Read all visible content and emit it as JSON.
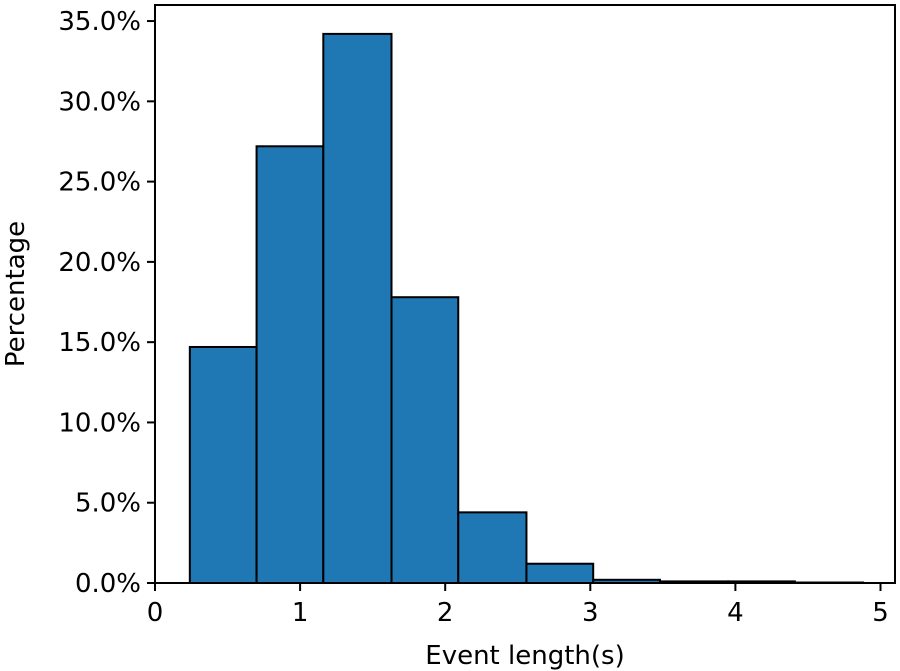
{
  "chart_data": {
    "type": "bar",
    "title": "",
    "xlabel": "Event length(s)",
    "ylabel": "Percentage",
    "xlim": [
      0,
      5.1
    ],
    "ylim": [
      0,
      0.36
    ],
    "x_ticks": [
      {
        "value": 0,
        "label": "0"
      },
      {
        "value": 1,
        "label": "1"
      },
      {
        "value": 2,
        "label": "2"
      },
      {
        "value": 3,
        "label": "3"
      },
      {
        "value": 4,
        "label": "4"
      },
      {
        "value": 5,
        "label": "5"
      }
    ],
    "y_ticks": [
      {
        "value": 0.0,
        "label": "0.0%"
      },
      {
        "value": 0.05,
        "label": "5.0%"
      },
      {
        "value": 0.1,
        "label": "10.0%"
      },
      {
        "value": 0.15,
        "label": "15.0%"
      },
      {
        "value": 0.2,
        "label": "20.0%"
      },
      {
        "value": 0.25,
        "label": "25.0%"
      },
      {
        "value": 0.3,
        "label": "30.0%"
      },
      {
        "value": 0.35,
        "label": "35.0%"
      }
    ],
    "bins": [
      {
        "x0": 0.24,
        "x1": 0.7,
        "value": 0.147
      },
      {
        "x0": 0.7,
        "x1": 1.16,
        "value": 0.272
      },
      {
        "x0": 1.16,
        "x1": 1.63,
        "value": 0.342
      },
      {
        "x0": 1.63,
        "x1": 2.09,
        "value": 0.178
      },
      {
        "x0": 2.09,
        "x1": 2.56,
        "value": 0.044
      },
      {
        "x0": 2.56,
        "x1": 3.02,
        "value": 0.012
      },
      {
        "x0": 3.02,
        "x1": 3.48,
        "value": 0.002
      },
      {
        "x0": 3.48,
        "x1": 3.95,
        "value": 0.001
      },
      {
        "x0": 3.95,
        "x1": 4.41,
        "value": 0.001
      },
      {
        "x0": 4.41,
        "x1": 4.88,
        "value": 0.0003
      }
    ],
    "bar_color": "#1f77b4",
    "edge_color": "#000000",
    "grid": false,
    "legend": "none"
  }
}
